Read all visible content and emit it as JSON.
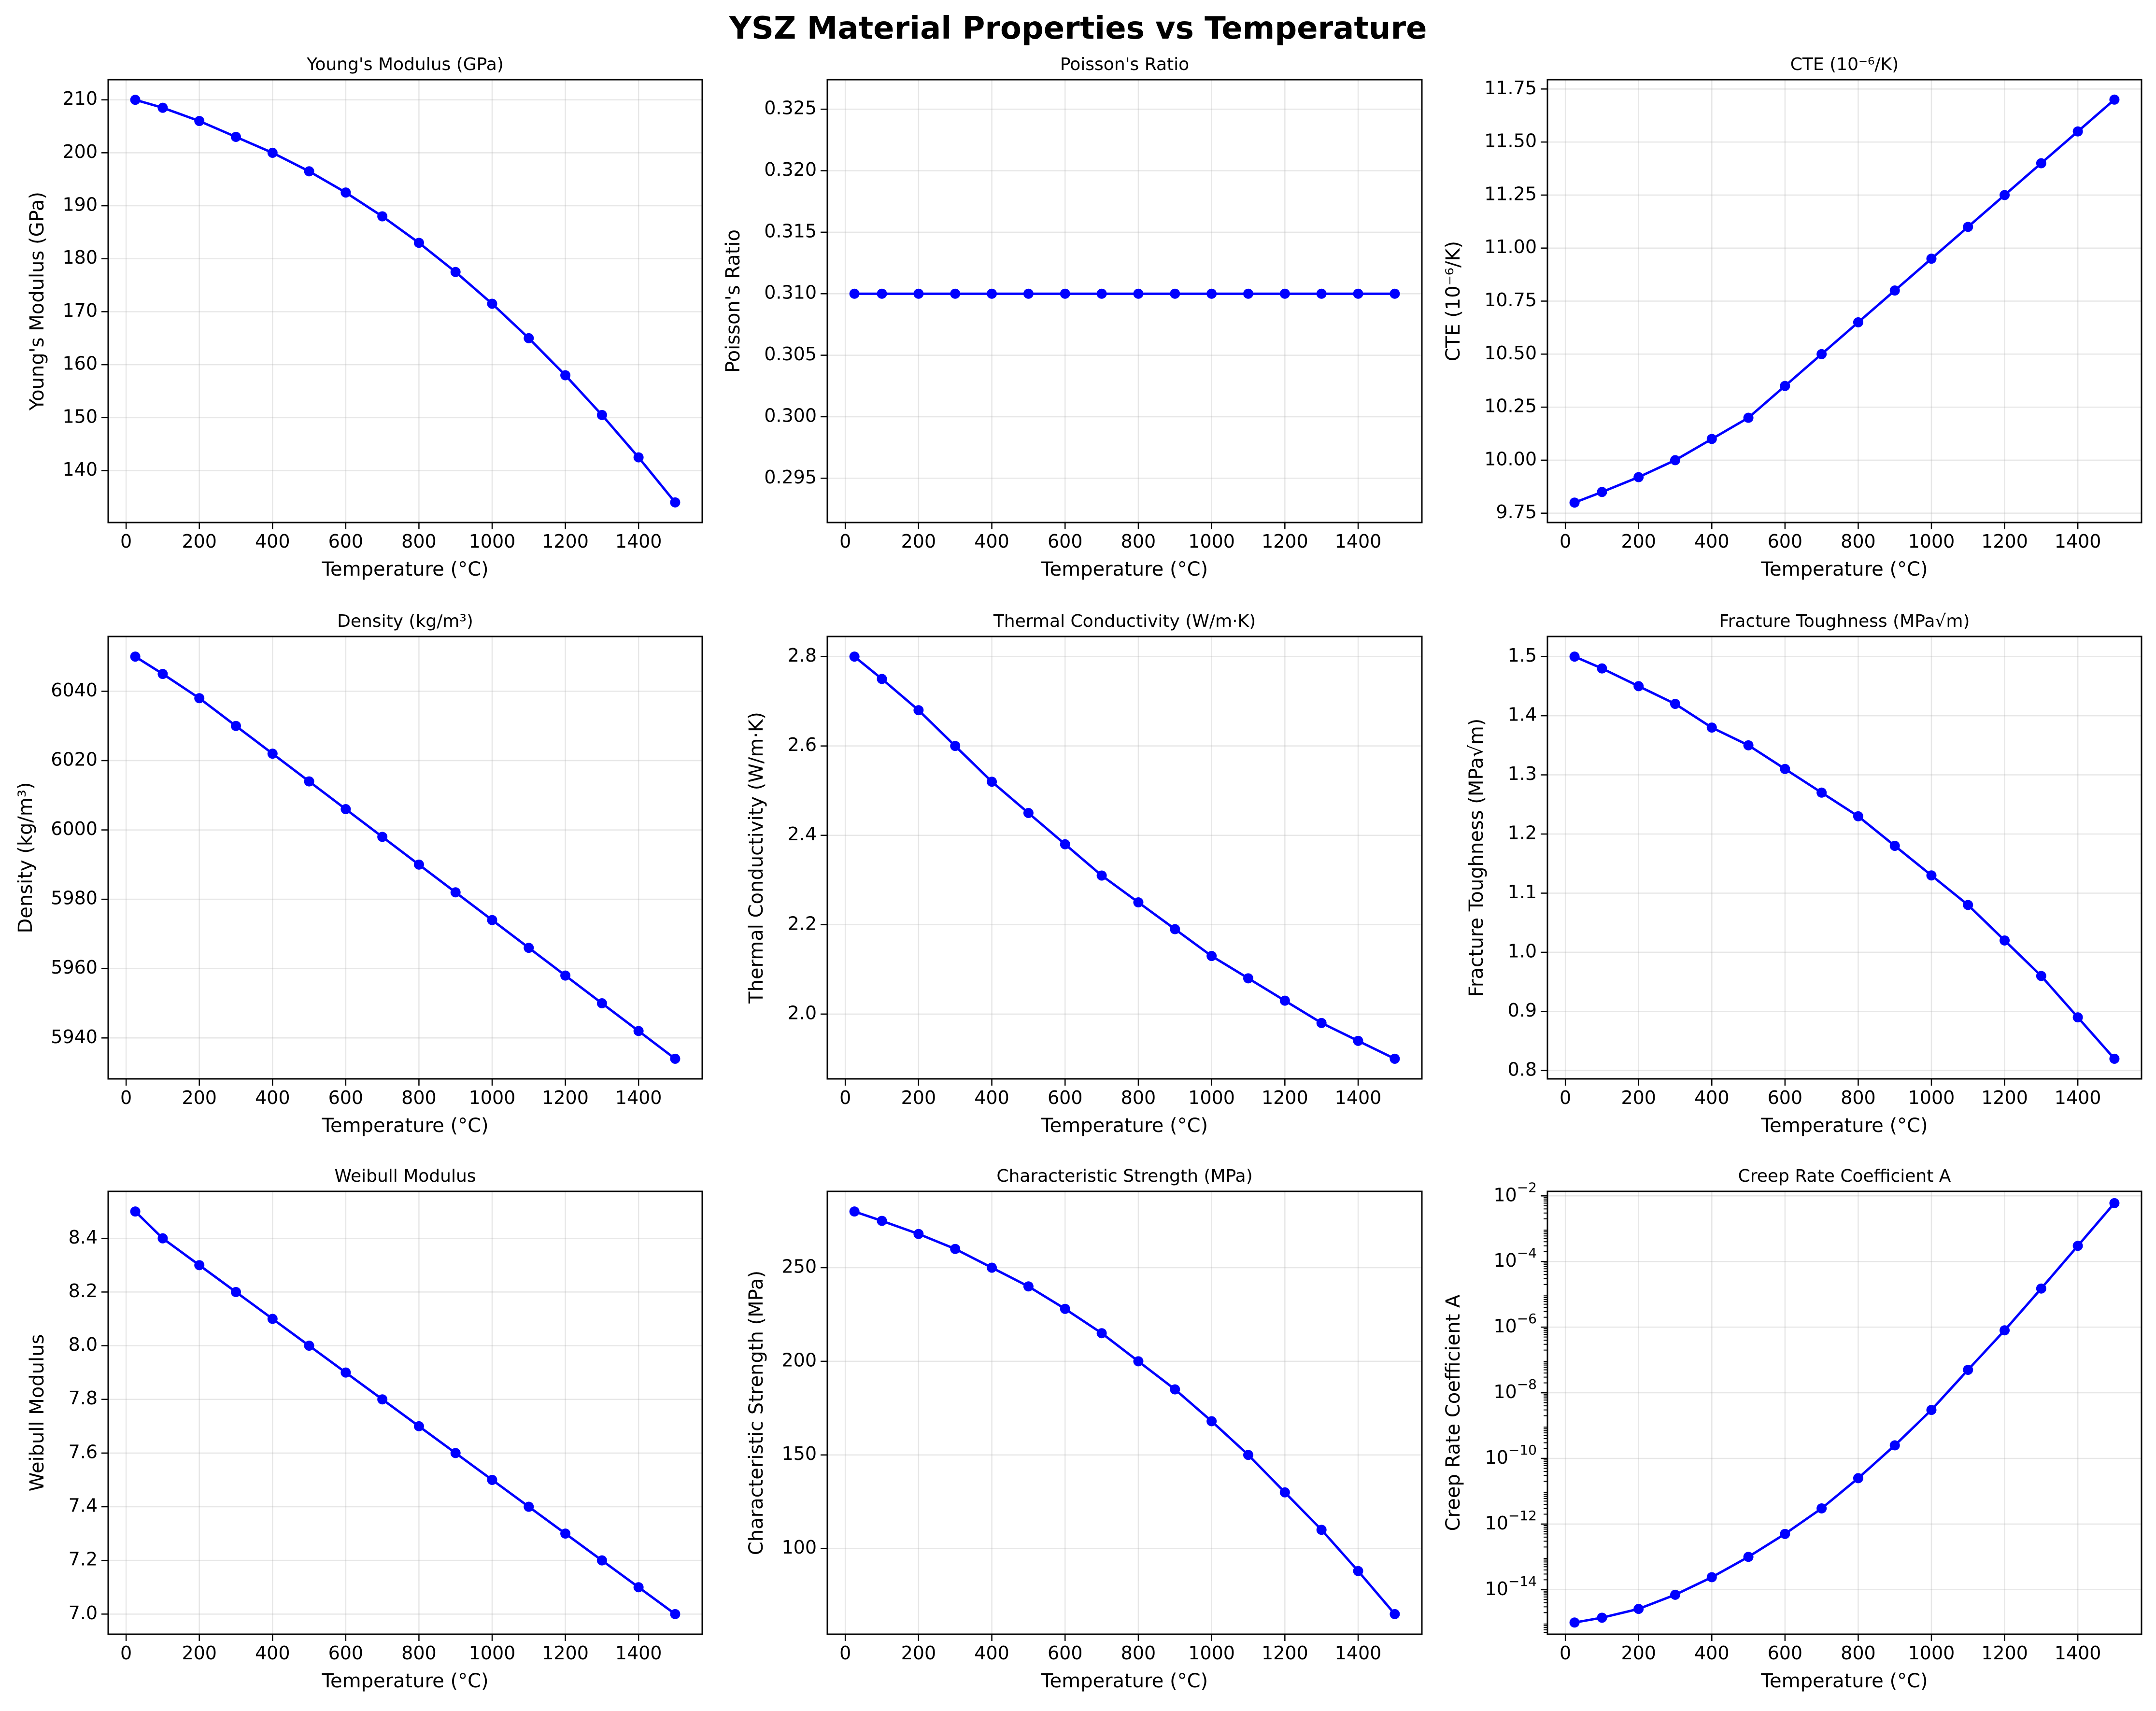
{
  "figure": {
    "title": "YSZ Material Properties vs Temperature",
    "line_color": "#0000ff"
  },
  "chart_data": [
    {
      "type": "line",
      "title": "Young's Modulus (GPa)",
      "xlabel": "Temperature (°C)",
      "ylabel": "Young's Modulus (GPa)",
      "x": [
        25,
        100,
        200,
        300,
        400,
        500,
        600,
        700,
        800,
        900,
        1000,
        1100,
        1200,
        1300,
        1400,
        1500
      ],
      "y": [
        210,
        208.5,
        206,
        203,
        200,
        196.5,
        192.5,
        188,
        183,
        177.5,
        171.5,
        165,
        158,
        150.5,
        142.5,
        134
      ],
      "xlim": [
        -49,
        1574
      ],
      "ylim": [
        130.2,
        213.8
      ],
      "xticks": [
        0,
        200,
        400,
        600,
        800,
        1000,
        1200,
        1400
      ],
      "yticks": [
        140,
        150,
        160,
        170,
        180,
        190,
        200,
        210
      ],
      "ytick_labels": [
        "140",
        "150",
        "160",
        "170",
        "180",
        "190",
        "200",
        "210"
      ],
      "yscale": "linear",
      "grid": true
    },
    {
      "type": "line",
      "title": "Poisson's Ratio",
      "xlabel": "Temperature (°C)",
      "ylabel": "Poisson's Ratio",
      "x": [
        25,
        100,
        200,
        300,
        400,
        500,
        600,
        700,
        800,
        900,
        1000,
        1100,
        1200,
        1300,
        1400,
        1500
      ],
      "y": [
        0.31,
        0.31,
        0.31,
        0.31,
        0.31,
        0.31,
        0.31,
        0.31,
        0.31,
        0.31,
        0.31,
        0.31,
        0.31,
        0.31,
        0.31,
        0.31
      ],
      "xlim": [
        -49,
        1574
      ],
      "ylim": [
        0.2914,
        0.3274
      ],
      "xticks": [
        0,
        200,
        400,
        600,
        800,
        1000,
        1200,
        1400
      ],
      "yticks": [
        0.295,
        0.3,
        0.305,
        0.31,
        0.315,
        0.32,
        0.325
      ],
      "ytick_labels": [
        "0.295",
        "0.300",
        "0.305",
        "0.310",
        "0.315",
        "0.320",
        "0.325"
      ],
      "yscale": "linear",
      "grid": true
    },
    {
      "type": "line",
      "title": "CTE (10⁻⁶/K)",
      "xlabel": "Temperature (°C)",
      "ylabel": "CTE (10⁻⁶/K)",
      "x": [
        25,
        100,
        200,
        300,
        400,
        500,
        600,
        700,
        800,
        900,
        1000,
        1100,
        1200,
        1300,
        1400,
        1500
      ],
      "y": [
        9.8,
        9.85,
        9.92,
        10.0,
        10.1,
        10.2,
        10.35,
        10.5,
        10.65,
        10.8,
        10.95,
        11.1,
        11.25,
        11.4,
        11.55,
        11.7
      ],
      "xlim": [
        -49,
        1574
      ],
      "ylim": [
        9.706,
        11.794
      ],
      "xticks": [
        0,
        200,
        400,
        600,
        800,
        1000,
        1200,
        1400
      ],
      "yticks": [
        9.75,
        10.0,
        10.25,
        10.5,
        10.75,
        11.0,
        11.25,
        11.5,
        11.75
      ],
      "ytick_labels": [
        "9.75",
        "10.00",
        "10.25",
        "10.50",
        "10.75",
        "11.00",
        "11.25",
        "11.50",
        "11.75"
      ],
      "yscale": "linear",
      "grid": true
    },
    {
      "type": "line",
      "title": "Density (kg/m³)",
      "xlabel": "Temperature (°C)",
      "ylabel": "Density (kg/m³)",
      "x": [
        25,
        100,
        200,
        300,
        400,
        500,
        600,
        700,
        800,
        900,
        1000,
        1100,
        1200,
        1300,
        1400,
        1500
      ],
      "y": [
        6050,
        6045,
        6038,
        6030,
        6022,
        6014,
        6006,
        5998,
        5990,
        5982,
        5974,
        5966,
        5958,
        5950,
        5942,
        5934
      ],
      "xlim": [
        -49,
        1574
      ],
      "ylim": [
        5928.2,
        6055.8
      ],
      "xticks": [
        0,
        200,
        400,
        600,
        800,
        1000,
        1200,
        1400
      ],
      "yticks": [
        5940,
        5960,
        5980,
        6000,
        6020,
        6040
      ],
      "ytick_labels": [
        "5940",
        "5960",
        "5980",
        "6000",
        "6020",
        "6040"
      ],
      "yscale": "linear",
      "grid": true
    },
    {
      "type": "line",
      "title": "Thermal Conductivity (W/m·K)",
      "xlabel": "Temperature (°C)",
      "ylabel": "Thermal Conductivity (W/m·K)",
      "x": [
        25,
        100,
        200,
        300,
        400,
        500,
        600,
        700,
        800,
        900,
        1000,
        1100,
        1200,
        1300,
        1400,
        1500
      ],
      "y": [
        2.8,
        2.75,
        2.68,
        2.6,
        2.52,
        2.45,
        2.38,
        2.31,
        2.25,
        2.19,
        2.13,
        2.08,
        2.03,
        1.98,
        1.94,
        1.9
      ],
      "xlim": [
        -49,
        1574
      ],
      "ylim": [
        1.855,
        2.845
      ],
      "xticks": [
        0,
        200,
        400,
        600,
        800,
        1000,
        1200,
        1400
      ],
      "yticks": [
        2.0,
        2.2,
        2.4,
        2.6,
        2.8
      ],
      "ytick_labels": [
        "2.0",
        "2.2",
        "2.4",
        "2.6",
        "2.8"
      ],
      "yscale": "linear",
      "grid": true
    },
    {
      "type": "line",
      "title": "Fracture Toughness (MPa√m)",
      "xlabel": "Temperature (°C)",
      "ylabel": "Fracture Toughness (MPa√m)",
      "x": [
        25,
        100,
        200,
        300,
        400,
        500,
        600,
        700,
        800,
        900,
        1000,
        1100,
        1200,
        1300,
        1400,
        1500
      ],
      "y": [
        1.5,
        1.48,
        1.45,
        1.42,
        1.38,
        1.35,
        1.31,
        1.27,
        1.23,
        1.18,
        1.13,
        1.08,
        1.02,
        0.96,
        0.89,
        0.82
      ],
      "xlim": [
        -49,
        1574
      ],
      "ylim": [
        0.786,
        1.534
      ],
      "xticks": [
        0,
        200,
        400,
        600,
        800,
        1000,
        1200,
        1400
      ],
      "yticks": [
        0.8,
        0.9,
        1.0,
        1.1,
        1.2,
        1.3,
        1.4,
        1.5
      ],
      "ytick_labels": [
        "0.8",
        "0.9",
        "1.0",
        "1.1",
        "1.2",
        "1.3",
        "1.4",
        "1.5"
      ],
      "yscale": "linear",
      "grid": true
    },
    {
      "type": "line",
      "title": "Weibull Modulus",
      "xlabel": "Temperature (°C)",
      "ylabel": "Weibull Modulus",
      "x": [
        25,
        100,
        200,
        300,
        400,
        500,
        600,
        700,
        800,
        900,
        1000,
        1100,
        1200,
        1300,
        1400,
        1500
      ],
      "y": [
        8.5,
        8.4,
        8.3,
        8.2,
        8.1,
        8.0,
        7.9,
        7.8,
        7.7,
        7.6,
        7.5,
        7.4,
        7.3,
        7.2,
        7.1,
        7.0
      ],
      "xlim": [
        -49,
        1574
      ],
      "ylim": [
        6.925,
        8.575
      ],
      "xticks": [
        0,
        200,
        400,
        600,
        800,
        1000,
        1200,
        1400
      ],
      "yticks": [
        7.0,
        7.2,
        7.4,
        7.6,
        7.8,
        8.0,
        8.2,
        8.4
      ],
      "ytick_labels": [
        "7.0",
        "7.2",
        "7.4",
        "7.6",
        "7.8",
        "8.0",
        "8.2",
        "8.4"
      ],
      "yscale": "linear",
      "grid": true
    },
    {
      "type": "line",
      "title": "Characteristic Strength (MPa)",
      "xlabel": "Temperature (°C)",
      "ylabel": "Characteristic Strength (MPa)",
      "x": [
        25,
        100,
        200,
        300,
        400,
        500,
        600,
        700,
        800,
        900,
        1000,
        1100,
        1200,
        1300,
        1400,
        1500
      ],
      "y": [
        280,
        275,
        268,
        260,
        250,
        240,
        228,
        215,
        200,
        185,
        168,
        150,
        130,
        110,
        88,
        65
      ],
      "xlim": [
        -49,
        1574
      ],
      "ylim": [
        54.25,
        290.75
      ],
      "xticks": [
        0,
        200,
        400,
        600,
        800,
        1000,
        1200,
        1400
      ],
      "yticks": [
        100,
        150,
        200,
        250
      ],
      "ytick_labels": [
        "100",
        "150",
        "200",
        "250"
      ],
      "yscale": "linear",
      "grid": true
    },
    {
      "type": "line",
      "title": "Creep Rate Coefficient A",
      "xlabel": "Temperature (°C)",
      "ylabel": "Creep Rate Coefficient A",
      "x": [
        25,
        100,
        200,
        300,
        400,
        500,
        600,
        700,
        800,
        900,
        1000,
        1100,
        1200,
        1300,
        1400,
        1500
      ],
      "y": [
        1e-15,
        1.4e-15,
        2.6e-15,
        7e-15,
        2.4e-14,
        1e-13,
        5e-13,
        3e-12,
        2.5e-11,
        2.5e-10,
        3e-09,
        5e-08,
        8e-07,
        1.5e-05,
        0.0003,
        0.006
      ],
      "xlim": [
        -49,
        1574
      ],
      "ylim": [
        4.4e-16,
        0.0137
      ],
      "xticks": [
        0,
        200,
        400,
        600,
        800,
        1000,
        1200,
        1400
      ],
      "yticks": [
        1e-14,
        1e-12,
        1e-10,
        1e-08,
        1e-06,
        0.0001,
        0.01
      ],
      "ytick_labels": [
        "10^-14",
        "10^-12",
        "10^-10",
        "10^-8",
        "10^-6",
        "10^-4",
        "10^-2"
      ],
      "yscale": "log",
      "grid": true
    }
  ]
}
